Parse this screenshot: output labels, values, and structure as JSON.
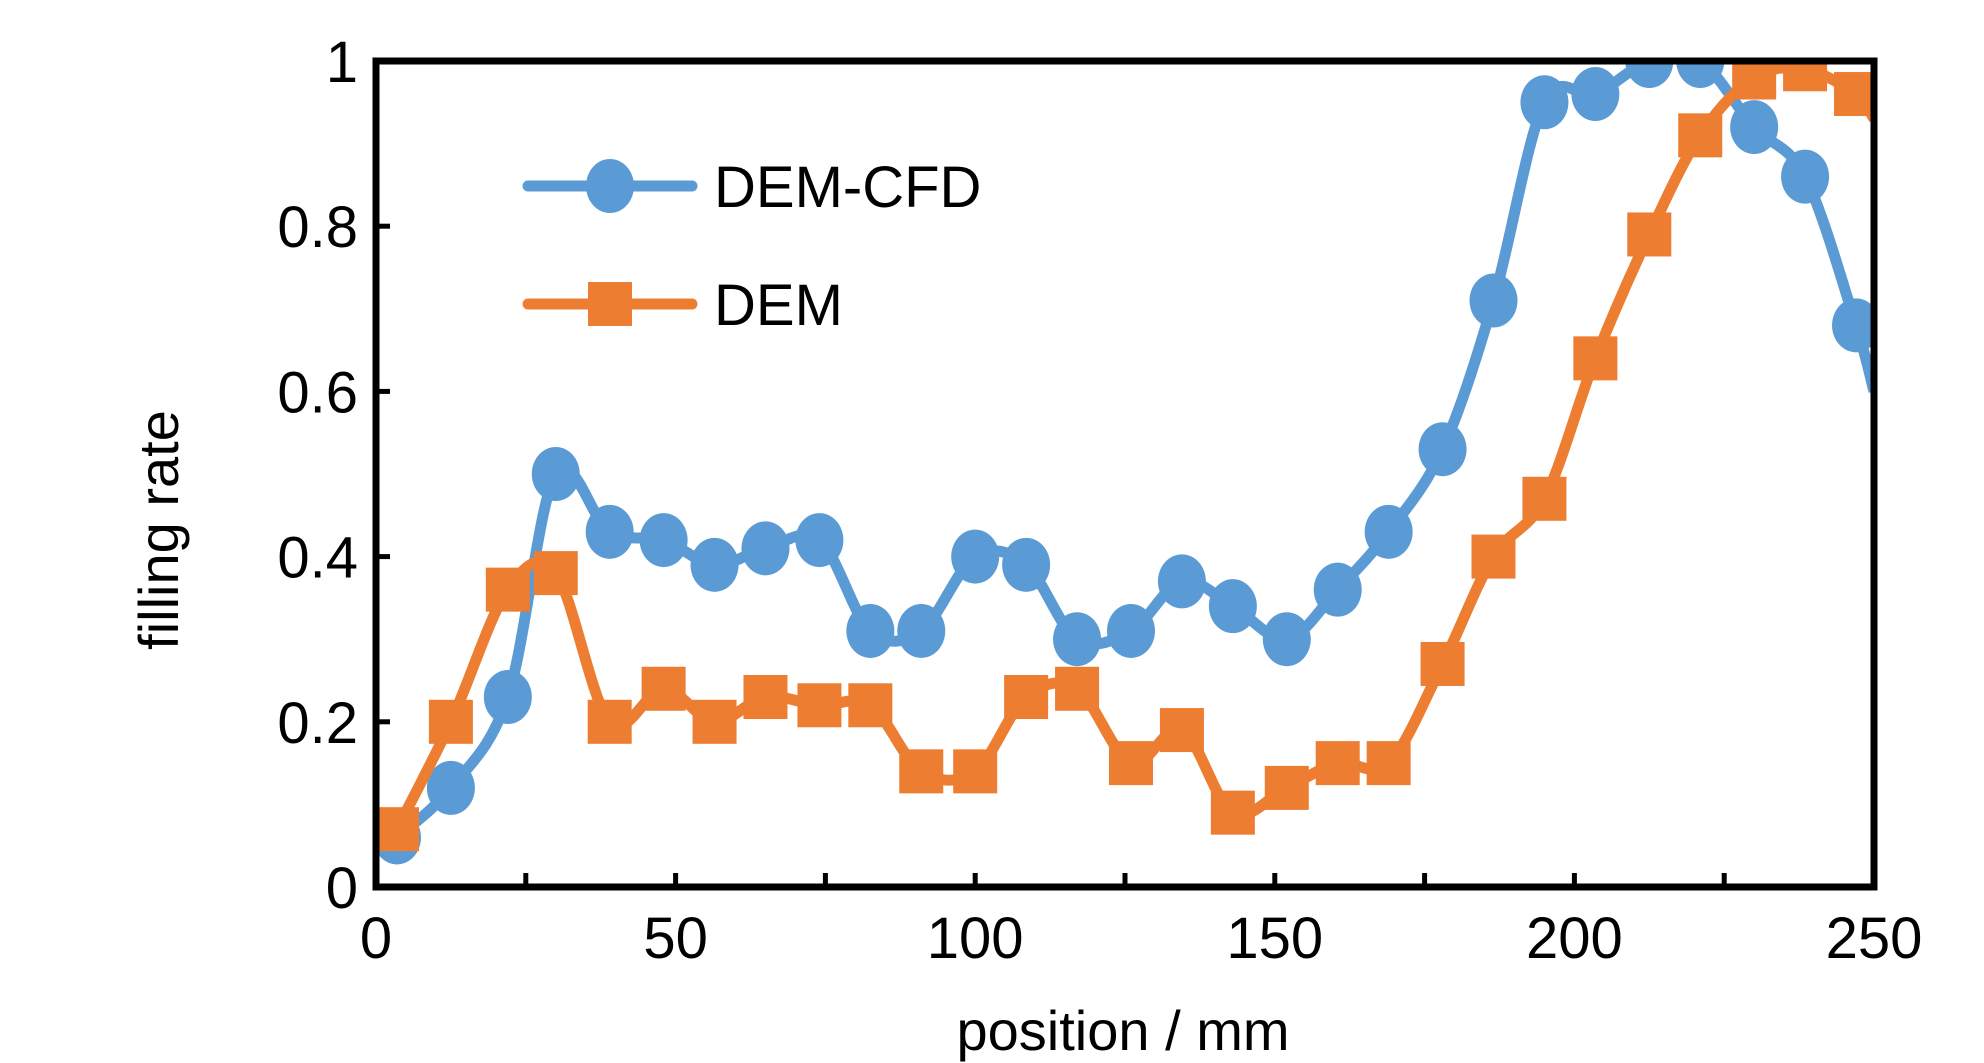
{
  "chart_data": {
    "type": "line",
    "title": "",
    "xlabel": "position / mm",
    "ylabel": "filling rate",
    "xlim": [
      0,
      250
    ],
    "ylim": [
      0,
      1
    ],
    "xticks": [
      0,
      50,
      100,
      150,
      200,
      250
    ],
    "xtick_labels": [
      "0",
      "50",
      "100",
      "150",
      "200",
      "250"
    ],
    "yticks": [
      0,
      0.2,
      0.4,
      0.6,
      0.8,
      1
    ],
    "ytick_labels": [
      "0",
      "0.2",
      "0.4",
      "0.6",
      "0.8",
      "1"
    ],
    "grid": false,
    "legend_position": "top-left",
    "series": [
      {
        "name": "DEM-CFD",
        "color": "#5B9BD5",
        "marker": "circle",
        "x": [
          3.5,
          12.5,
          22,
          30,
          39,
          48,
          56.5,
          65,
          74,
          82.5,
          91,
          100,
          108.5,
          117,
          126,
          134.5,
          143,
          152,
          160.5,
          169,
          178,
          186.5,
          195,
          203.5,
          212.5,
          221,
          230,
          238.5,
          247,
          250
        ],
        "values": [
          0.06,
          0.12,
          0.23,
          0.5,
          0.43,
          0.42,
          0.39,
          0.41,
          0.42,
          0.31,
          0.31,
          0.4,
          0.39,
          0.3,
          0.31,
          0.37,
          0.34,
          0.3,
          0.36,
          0.43,
          0.53,
          0.71,
          0.95,
          0.96,
          1.0,
          1.0,
          0.92,
          0.86,
          0.68,
          0.6
        ]
      },
      {
        "name": "DEM",
        "color": "#ED7D31",
        "marker": "square",
        "x": [
          3.5,
          12.5,
          22,
          30,
          39,
          48,
          56.5,
          65,
          74,
          82.5,
          91,
          100,
          108.5,
          117,
          126,
          134.5,
          143,
          152,
          160.5,
          169,
          178,
          186.5,
          195,
          203.5,
          212.5,
          221,
          230,
          238.5,
          247,
          250
        ],
        "values": [
          0.07,
          0.2,
          0.36,
          0.38,
          0.2,
          0.24,
          0.2,
          0.23,
          0.22,
          0.22,
          0.14,
          0.14,
          0.23,
          0.24,
          0.15,
          0.19,
          0.09,
          0.12,
          0.15,
          0.15,
          0.27,
          0.4,
          0.47,
          0.64,
          0.79,
          0.91,
          0.98,
          0.99,
          0.96,
          0.93
        ]
      }
    ]
  }
}
